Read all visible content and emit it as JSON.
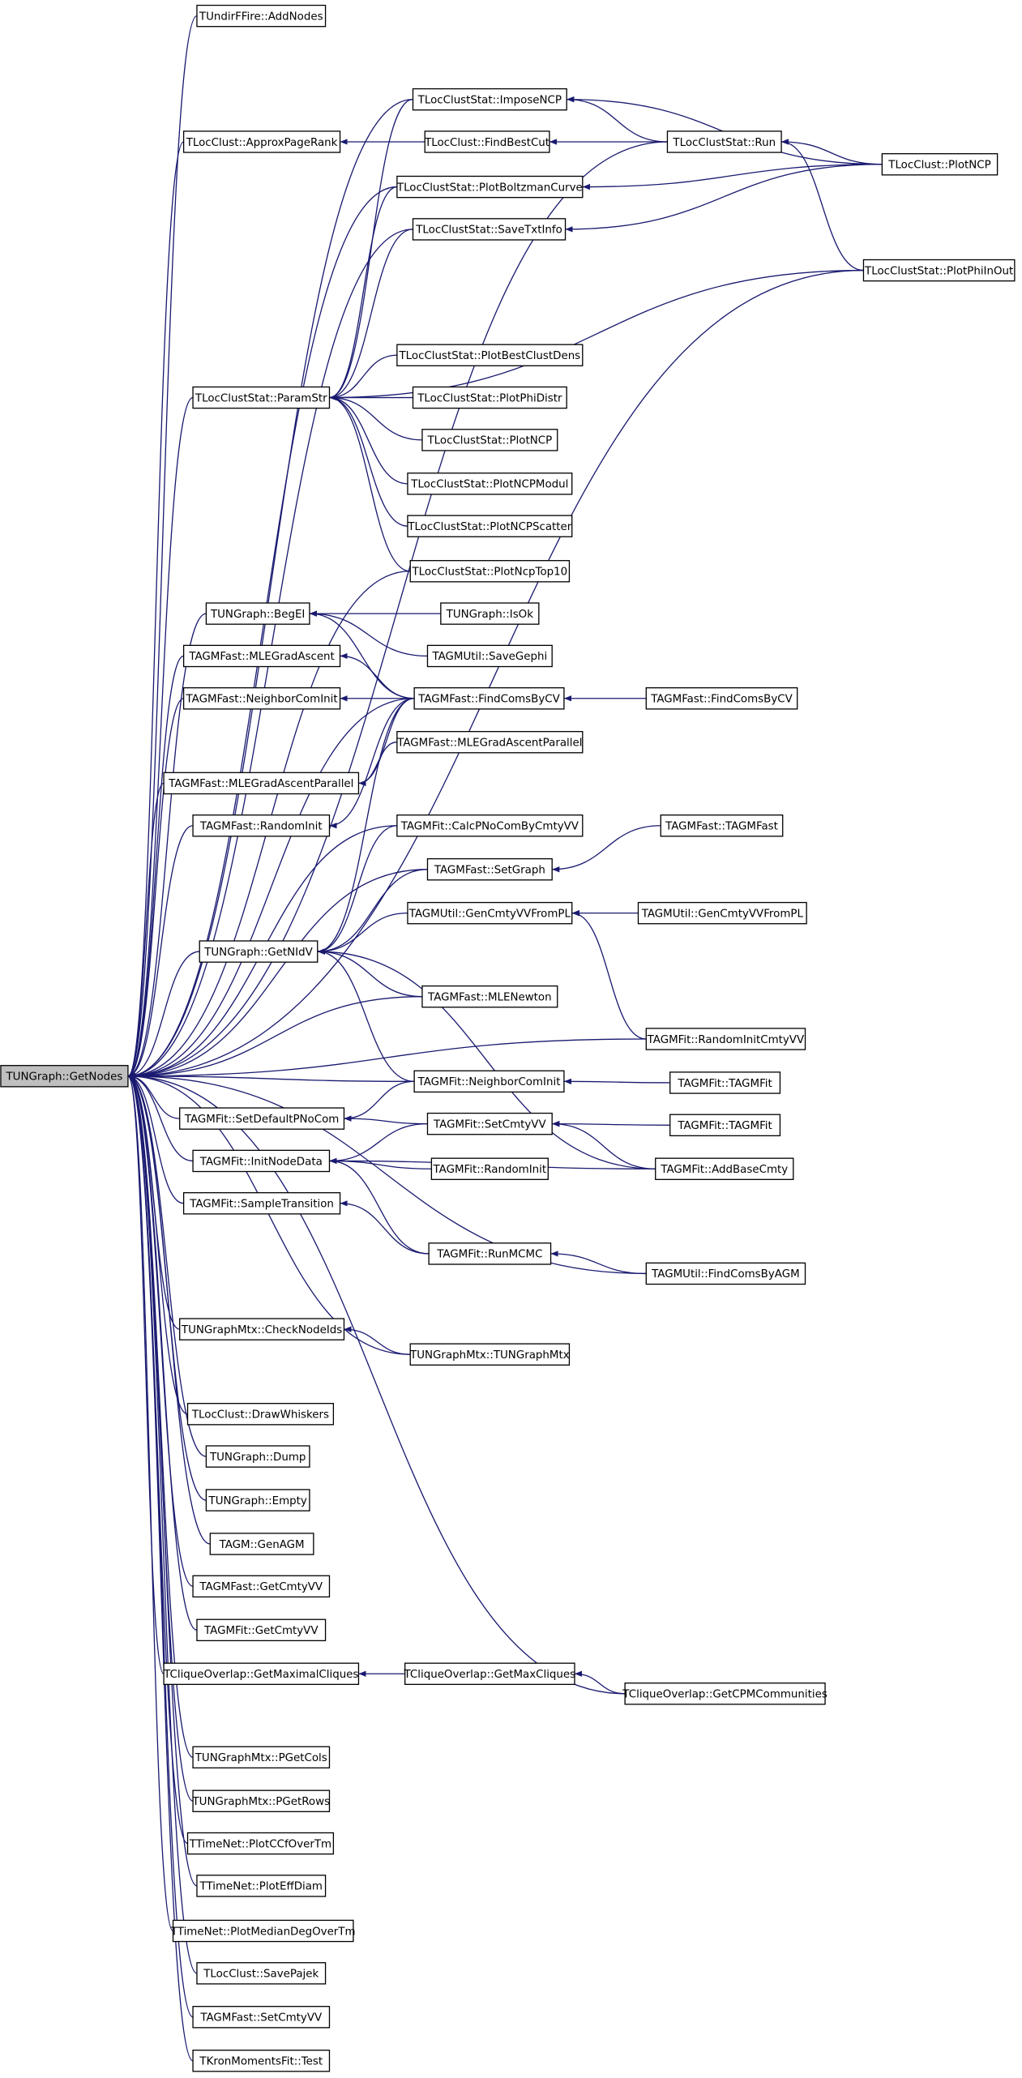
{
  "nodes": [
    {
      "label": "TUndirFFire::AddNodes"
    },
    {
      "label": "TLocClustStat::ImposeNCP"
    },
    {
      "label": "TLocClust::ApproxPageRank"
    },
    {
      "label": "TLocClust::FindBestCut"
    },
    {
      "label": "TLocClustStat::Run"
    },
    {
      "label": "TLocClust::PlotNCP"
    },
    {
      "label": "TLocClustStat::PlotBoltzmanCurve"
    },
    {
      "label": "TLocClustStat::SaveTxtInfo"
    },
    {
      "label": "TLocClustStat::PlotPhiInOut"
    },
    {
      "label": "TLocClustStat::PlotBestClustDens"
    },
    {
      "label": "TLocClustStat::ParamStr"
    },
    {
      "label": "TLocClustStat::PlotPhiDistr"
    },
    {
      "label": "TLocClustStat::PlotNCP"
    },
    {
      "label": "TLocClustStat::PlotNCPModul"
    },
    {
      "label": "TLocClustStat::PlotNCPScatter"
    },
    {
      "label": "TLocClustStat::PlotNcpTop10"
    },
    {
      "label": "TUNGraph::BegEI"
    },
    {
      "label": "TUNGraph::IsOk"
    },
    {
      "label": "TAGMFast::MLEGradAscent"
    },
    {
      "label": "TAGMUtil::SaveGephi"
    },
    {
      "label": "TAGMFast::NeighborComInit"
    },
    {
      "label": "TAGMFast::FindComsByCV"
    },
    {
      "label": "TAGMFast::FindComsByCV"
    },
    {
      "label": "TAGMFast::MLEGradAscentParallel"
    },
    {
      "label": "TAGMFast::MLEGradAscentParallel"
    },
    {
      "label": "TAGMFast::RandomInit"
    },
    {
      "label": "TAGMFit::CalcPNoComByCmtyVV"
    },
    {
      "label": "TAGMFast::TAGMFast"
    },
    {
      "label": "TAGMFast::SetGraph"
    },
    {
      "label": "TAGMUtil::GenCmtyVVFromPL"
    },
    {
      "label": "TAGMUtil::GenCmtyVVFromPL"
    },
    {
      "label": "TUNGraph::GetNIdV"
    },
    {
      "label": "TAGMFast::MLENewton"
    },
    {
      "label": "TAGMFit::RandomInitCmtyVV"
    },
    {
      "label": "TUNGraph::GetNodes"
    },
    {
      "label": "TAGMFit::NeighborComInit"
    },
    {
      "label": "TAGMFit::TAGMFit"
    },
    {
      "label": "TAGMFit::SetDefaultPNoCom"
    },
    {
      "label": "TAGMFit::SetCmtyVV"
    },
    {
      "label": "TAGMFit::TAGMFit"
    },
    {
      "label": "TAGMFit::InitNodeData"
    },
    {
      "label": "TAGMFit::RandomInit"
    },
    {
      "label": "TAGMFit::AddBaseCmty"
    },
    {
      "label": "TAGMFit::SampleTransition"
    },
    {
      "label": "TAGMFit::RunMCMC"
    },
    {
      "label": "TAGMUtil::FindComsByAGM"
    },
    {
      "label": "TUNGraphMtx::CheckNodeIds"
    },
    {
      "label": "TUNGraphMtx::TUNGraphMtx"
    },
    {
      "label": "TLocClust::DrawWhiskers"
    },
    {
      "label": "TUNGraph::Dump"
    },
    {
      "label": "TUNGraph::Empty"
    },
    {
      "label": "TAGM::GenAGM"
    },
    {
      "label": "TAGMFast::GetCmtyVV"
    },
    {
      "label": "TAGMFit::GetCmtyVV"
    },
    {
      "label": "TCliqueOverlap::GetMaximalCliques"
    },
    {
      "label": "TCliqueOverlap::GetMaxCliques"
    },
    {
      "label": "TCliqueOverlap::GetCPMCommunities"
    },
    {
      "label": "TUNGraphMtx::PGetCols"
    },
    {
      "label": "TUNGraphMtx::PGetRows"
    },
    {
      "label": "TTimeNet::PlotCCfOverTm"
    },
    {
      "label": "TTimeNet::PlotEffDiam"
    },
    {
      "label": "TTimeNet::PlotMedianDegOverTm"
    },
    {
      "label": "TLocClust::SavePajek"
    },
    {
      "label": "TAGMFast::SetCmtyVV"
    },
    {
      "label": "TKronMomentsFit::Test"
    }
  ]
}
